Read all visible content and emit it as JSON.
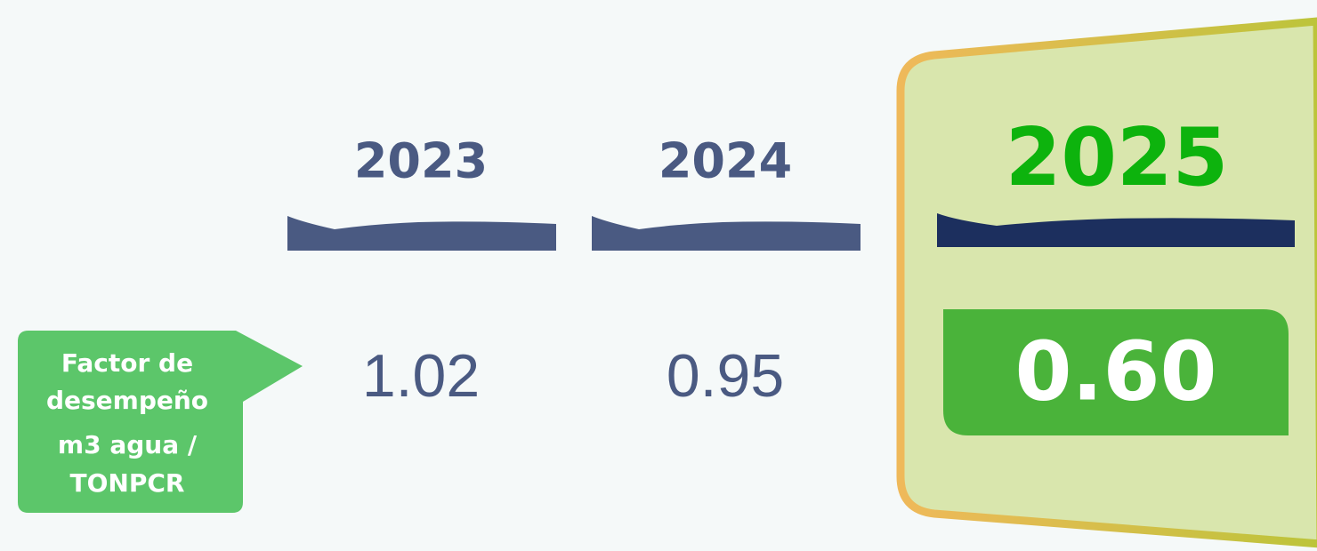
{
  "label": [
    "Factor de",
    "desempeño",
    "m3 agua /",
    "TONPCR"
  ],
  "columns": [
    {
      "year": "2023",
      "value": "1.02"
    },
    {
      "year": "2024",
      "value": "0.95"
    },
    {
      "year": "2025",
      "value": "0.60"
    }
  ]
}
